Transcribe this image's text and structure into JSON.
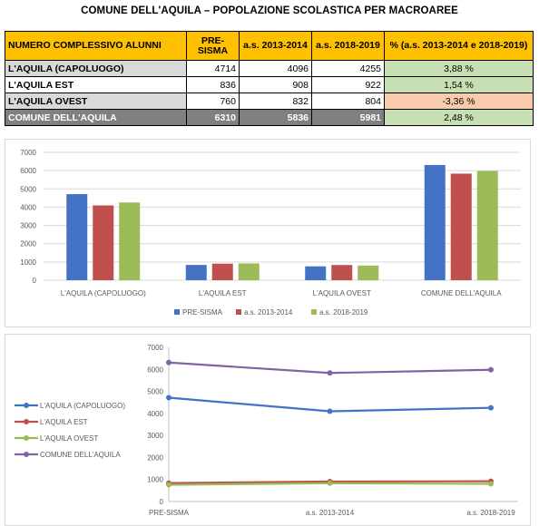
{
  "title": "COMUNE DELL'AQUILA – POPOLAZIONE SCOLASTICA PER MACROAREE",
  "table": {
    "headers": [
      "NUMERO COMPLESSIVO ALUNNI",
      "PRE-SISMA",
      "a.s. 2013-2014",
      "a.s. 2018-2019",
      "% (a.s. 2013-2014 e 2018-2019)"
    ],
    "rows": [
      {
        "name": "L'AQUILA (CAPOLUOGO)",
        "pre": "4714",
        "y13": "4096",
        "y18": "4255",
        "pct": "3,88 %"
      },
      {
        "name": "L'AQUILA EST",
        "pre": "836",
        "y13": "908",
        "y18": "922",
        "pct": "1,54 %"
      },
      {
        "name": "L'AQUILA OVEST",
        "pre": "760",
        "y13": "832",
        "y18": "804",
        "pct": "-3,36 %"
      },
      {
        "name": "COMUNE DELL'AQUILA",
        "pre": "6310",
        "y13": "5836",
        "y18": "5981",
        "pct": "2,48 %"
      }
    ]
  },
  "colors": {
    "pre_sisma": "#4472c4",
    "as_2013_2014": "#c0504d",
    "as_2018_2019": "#9bbb59",
    "comune": "#8064a2",
    "header_fill": "#ffc000",
    "positive_fill": "#c6e0b4",
    "negative_fill": "#f8cbad"
  },
  "chart_data": [
    {
      "type": "bar",
      "categories": [
        "L'AQUILA (CAPOLUOGO)",
        "L'AQUILA EST",
        "L'AQUILA OVEST",
        "COMUNE DELL'AQUILA"
      ],
      "series": [
        {
          "name": "PRE-SISMA",
          "values": [
            4714,
            836,
            760,
            6310
          ]
        },
        {
          "name": "a.s. 2013-2014",
          "values": [
            4096,
            908,
            832,
            5836
          ]
        },
        {
          "name": "a.s. 2018-2019",
          "values": [
            4255,
            922,
            804,
            5981
          ]
        }
      ],
      "yticks": [
        "0",
        "1000",
        "2000",
        "3000",
        "4000",
        "5000",
        "6000",
        "7000"
      ],
      "ylim": [
        0,
        7000
      ],
      "legend": "bottom",
      "grid": true
    },
    {
      "type": "line",
      "x": [
        "PRE-SISMA",
        "a.s. 2013-2014",
        "a.s. 2018-2019"
      ],
      "series": [
        {
          "name": "L'AQUILA (CAPOLUOGO)",
          "values": [
            4714,
            4096,
            4255
          ]
        },
        {
          "name": "L'AQUILA EST",
          "values": [
            836,
            908,
            922
          ]
        },
        {
          "name": "L'AQUILA OVEST",
          "values": [
            760,
            832,
            804
          ]
        },
        {
          "name": "COMUNE DELL'AQUILA",
          "values": [
            6310,
            5836,
            5981
          ]
        }
      ],
      "yticks": [
        "0",
        "1000",
        "2000",
        "3000",
        "4000",
        "5000",
        "6000",
        "7000"
      ],
      "ylim": [
        0,
        7000
      ],
      "legend": "left",
      "grid": false
    }
  ]
}
